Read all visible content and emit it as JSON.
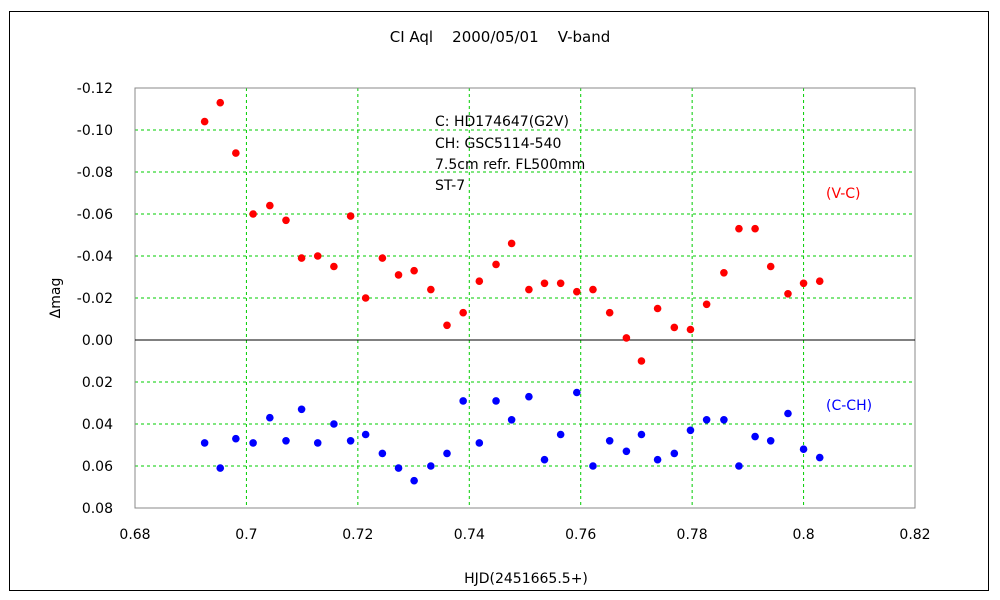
{
  "chart_data": {
    "type": "scatter",
    "title": "CI Aql    2000/05/01    V-band",
    "xlabel": "HJD(2451665.5+)",
    "ylabel": "Δmag",
    "xlim": [
      0.68,
      0.82
    ],
    "ylim": [
      -0.12,
      0.08
    ],
    "y_inverted": true,
    "x_ticks": [
      0.68,
      0.7,
      0.72,
      0.74,
      0.76,
      0.78,
      0.8,
      0.82
    ],
    "x_tick_labels": [
      "0.68",
      "0.7",
      "0.72",
      "0.74",
      "0.76",
      "0.78",
      "0.8",
      "0.82"
    ],
    "y_ticks": [
      -0.12,
      -0.1,
      -0.08,
      -0.06,
      -0.04,
      -0.02,
      0.0,
      0.02,
      0.04,
      0.06,
      0.08
    ],
    "y_tick_labels": [
      "-0.12",
      "-0.10",
      "-0.08",
      "-0.06",
      "-0.04",
      "-0.02",
      "0.00",
      "0.02",
      "0.04",
      "0.06",
      "0.08"
    ],
    "grid": true,
    "grid_color": "#00cc00",
    "zero_line": true,
    "annotations": [
      "C: HD174647(G2V)",
      "CH: GSC5114-540",
      "7.5cm refr. FL500mm",
      "ST-7"
    ],
    "series": [
      {
        "name": "(V-C)",
        "color": "#ff0000",
        "x": [
          0.6925,
          0.6953,
          0.6981,
          0.7012,
          0.7042,
          0.7071,
          0.7099,
          0.7128,
          0.7157,
          0.7187,
          0.7214,
          0.7244,
          0.7273,
          0.7301,
          0.7331,
          0.736,
          0.7389,
          0.7418,
          0.7448,
          0.7476,
          0.7507,
          0.7535,
          0.7564,
          0.7593,
          0.7622,
          0.7652,
          0.7682,
          0.7709,
          0.7738,
          0.7768,
          0.7797,
          0.7826,
          0.7857,
          0.7884,
          0.7913,
          0.7941,
          0.7972,
          0.8,
          0.8029
        ],
        "y": [
          -0.104,
          -0.113,
          -0.089,
          -0.06,
          -0.064,
          -0.057,
          -0.039,
          -0.04,
          -0.035,
          -0.059,
          -0.02,
          -0.039,
          -0.031,
          -0.033,
          -0.024,
          -0.007,
          -0.013,
          -0.028,
          -0.036,
          -0.046,
          -0.024,
          -0.027,
          -0.027,
          -0.023,
          -0.024,
          -0.013,
          -0.001,
          0.01,
          -0.015,
          -0.006,
          -0.005,
          -0.017,
          -0.032,
          -0.053,
          -0.053,
          -0.035,
          -0.022,
          -0.027,
          -0.028
        ]
      },
      {
        "name": "(C-CH)",
        "color": "#0000ff",
        "x": [
          0.6925,
          0.6953,
          0.6981,
          0.7012,
          0.7042,
          0.7071,
          0.7099,
          0.7128,
          0.7157,
          0.7187,
          0.7214,
          0.7244,
          0.7273,
          0.7301,
          0.7331,
          0.736,
          0.7389,
          0.7418,
          0.7448,
          0.7476,
          0.7507,
          0.7535,
          0.7564,
          0.7593,
          0.7622,
          0.7652,
          0.7682,
          0.7709,
          0.7738,
          0.7768,
          0.7797,
          0.7826,
          0.7857,
          0.7884,
          0.7913,
          0.7941,
          0.7972,
          0.8,
          0.8029
        ],
        "y": [
          0.049,
          0.061,
          0.047,
          0.049,
          0.037,
          0.048,
          0.033,
          0.049,
          0.04,
          0.048,
          0.045,
          0.054,
          0.061,
          0.067,
          0.06,
          0.054,
          0.029,
          0.049,
          0.029,
          0.038,
          0.027,
          0.057,
          0.045,
          0.025,
          0.06,
          0.048,
          0.053,
          0.045,
          0.057,
          0.054,
          0.043,
          0.038,
          0.038,
          0.06,
          0.046,
          0.048,
          0.035,
          0.052,
          0.056
        ]
      }
    ]
  }
}
